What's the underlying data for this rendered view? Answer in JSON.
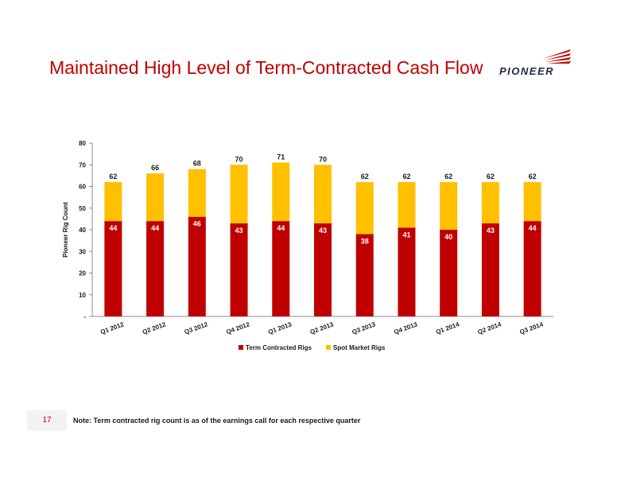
{
  "slide": {
    "title": "Maintained High Level of Term-Contracted Cash Flow",
    "logo_text": "PIONEER",
    "page_number": "17",
    "note": "Note: Term contracted rig count is as of the earnings call for each respective quarter"
  },
  "chart_data": {
    "type": "bar",
    "stacked": true,
    "categories": [
      "Q1 2012",
      "Q2 2012",
      "Q3 2012",
      "Q4 2012",
      "Q1 2013",
      "Q2 2013",
      "Q3 2013",
      "Q4 2013",
      "Q1 2014",
      "Q2 2014",
      "Q3 2014"
    ],
    "series": [
      {
        "name": "Term Contracted Rigs",
        "values": [
          44,
          44,
          46,
          43,
          44,
          43,
          38,
          41,
          40,
          43,
          44
        ],
        "color": "#c00000"
      },
      {
        "name": "Spot Market Rigs",
        "values": [
          18,
          22,
          22,
          27,
          27,
          27,
          24,
          21,
          22,
          19,
          18
        ],
        "color": "#ffc000"
      }
    ],
    "totals": [
      62,
      66,
      68,
      70,
      71,
      70,
      62,
      62,
      62,
      62,
      62
    ],
    "ylabel": "Pioneer Rig Count",
    "xlabel": "",
    "ylim": [
      0,
      80
    ],
    "yticks": [
      0,
      10,
      20,
      30,
      40,
      50,
      60,
      70,
      80
    ],
    "ytick_labels": [
      "-",
      "10",
      "20",
      "30",
      "40",
      "50",
      "60",
      "70",
      "80"
    ],
    "grid": false,
    "legend_position": "bottom"
  }
}
